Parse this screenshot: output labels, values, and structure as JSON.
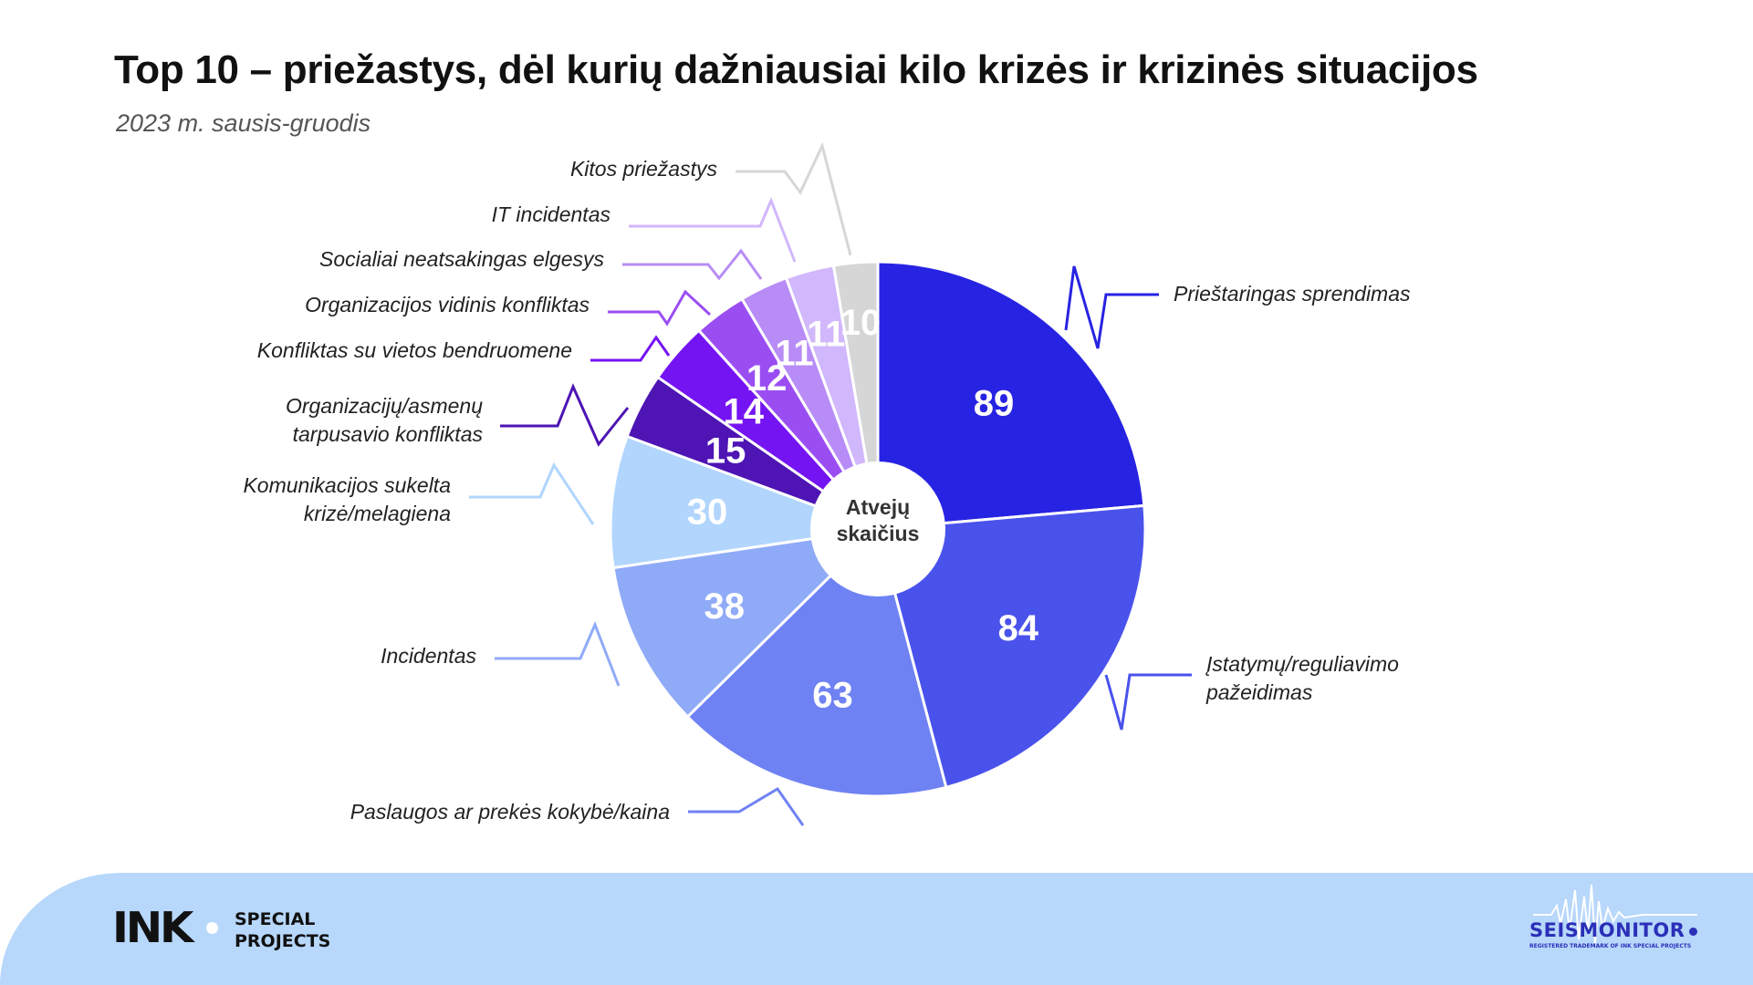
{
  "title": "Top 10 – priežastys, dėl kurių dažniausiai kilo krizės ir krizinės situacijos",
  "subtitle": "2023 m. sausis-gruodis",
  "center_label": [
    "Atvejų",
    "skaičius"
  ],
  "chart_data": {
    "type": "pie",
    "style": "donut",
    "start": "top, clockwise",
    "slices": [
      {
        "label": [
          "Prieštaringas sprendimas"
        ],
        "value": 89,
        "color": "#2723e2"
      },
      {
        "label": [
          "Įstatymų/reguliavimo",
          "pažeidimas"
        ],
        "value": 84,
        "color": "#4a52ec"
      },
      {
        "label": [
          "Paslaugos ar prekės kokybė/kaina"
        ],
        "value": 63,
        "color": "#6f82f3"
      },
      {
        "label": [
          "Incidentas"
        ],
        "value": 38,
        "color": "#8faaf7"
      },
      {
        "label": [
          "Komunikacijos sukelta",
          "krizė/melagiena"
        ],
        "value": 30,
        "color": "#b1d5fd"
      },
      {
        "label": [
          "Organizacijų/asmenų",
          "tarpusavio konfliktas"
        ],
        "value": 15,
        "color": "#4e14b4"
      },
      {
        "label": [
          "Konfliktas su vietos bendruomene"
        ],
        "value": 14,
        "color": "#7514f2"
      },
      {
        "label": [
          "Organizacijos vidinis konfliktas"
        ],
        "value": 12,
        "color": "#9a4ef2"
      },
      {
        "label": [
          "Socialiai neatsakingas elgesys"
        ],
        "value": 11,
        "color": "#b88cf6"
      },
      {
        "label": [
          "IT incidentas"
        ],
        "value": 11,
        "color": "#d1b7fb"
      },
      {
        "label": [
          "Kitos priežastys"
        ],
        "value": 10,
        "color": "#d6d6d6"
      }
    ]
  },
  "footer": {
    "logo": "INK",
    "special": [
      "SPECIAL",
      "PROJECTS"
    ],
    "brand": "SEISMONITOR",
    "brand_note": "REGISTERED TRADEMARK OF INK SPECIAL PROJECTS"
  }
}
